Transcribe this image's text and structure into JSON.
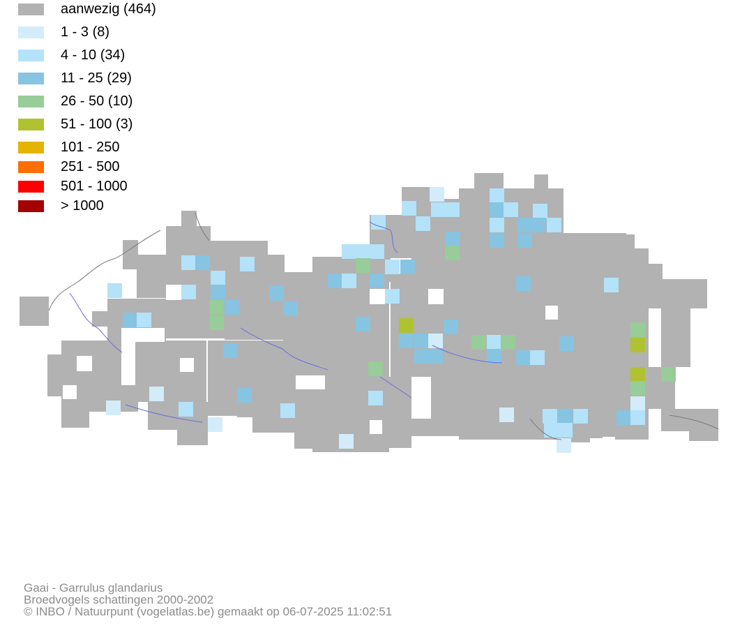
{
  "legend": [
    {
      "label": "aanwezig (464)",
      "color": "#b2b2b2"
    },
    {
      "label": "1 - 3 (8)",
      "color": "#d2ecfa"
    },
    {
      "label": "4 - 10 (34)",
      "color": "#b3e2f9"
    },
    {
      "label": "11 - 25 (29)",
      "color": "#86c4e1"
    },
    {
      "label": "26 - 50 (10)",
      "color": "#98cc98"
    },
    {
      "label": "51 - 100 (3)",
      "color": "#b1c231"
    },
    {
      "label": "101 - 250",
      "color": "#e5b400"
    },
    {
      "label": "251 - 500",
      "color": "#ff6e00"
    },
    {
      "label": "501 - 1000",
      "color": "#ff0000"
    },
    {
      "label": "> 1000",
      "color": "#a30000"
    }
  ],
  "footer": {
    "species": "Gaai - Garrulus glandarius",
    "dataset": "Broedvogels schattingen 2000-2002",
    "credit": "© INBO / Natuurpunt (vogelatlas.be) gemaakt op 06-07-2025 11:02:51"
  },
  "map": {
    "base_color": "#b2b2b2",
    "water_color": "#6b6bdc",
    "border_color": "#7a7a7a"
  }
}
